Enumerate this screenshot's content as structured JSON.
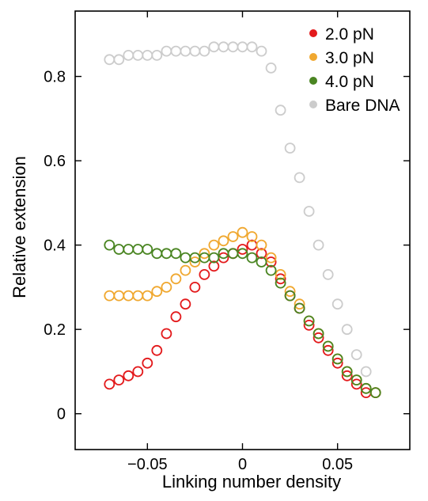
{
  "chart_data": {
    "type": "scatter",
    "xlabel": "Linking number density",
    "ylabel": "Relative extension",
    "xlim": [
      -0.088,
      0.088
    ],
    "ylim": [
      -0.085,
      0.955
    ],
    "x_ticks": [
      -0.05,
      0,
      0.05
    ],
    "x_tick_labels": [
      "−0.05",
      "0",
      "0.05"
    ],
    "y_ticks": [
      0,
      0.2,
      0.4,
      0.6,
      0.8
    ],
    "y_tick_labels": [
      "0",
      "0.2",
      "0.4",
      "0.6",
      "0.8"
    ],
    "grid": false,
    "legend_position": "top-right",
    "marker": "open-circle",
    "series": [
      {
        "name": "2.0 pN",
        "color": "#e31a1c",
        "x": [
          -0.07,
          -0.065,
          -0.06,
          -0.055,
          -0.05,
          -0.045,
          -0.04,
          -0.035,
          -0.03,
          -0.025,
          -0.02,
          -0.015,
          -0.01,
          -0.005,
          0.0,
          0.005,
          0.01,
          0.015,
          0.02,
          0.025,
          0.03,
          0.035,
          0.04,
          0.045,
          0.05,
          0.055,
          0.06,
          0.065,
          0.07
        ],
        "y": [
          0.07,
          0.08,
          0.09,
          0.1,
          0.12,
          0.15,
          0.19,
          0.23,
          0.26,
          0.3,
          0.33,
          0.35,
          0.37,
          0.38,
          0.39,
          0.4,
          0.38,
          0.36,
          0.32,
          0.28,
          0.25,
          0.21,
          0.18,
          0.15,
          0.12,
          0.09,
          0.07,
          0.05,
          0.05
        ]
      },
      {
        "name": "3.0 pN",
        "color": "#f0a830",
        "x": [
          -0.07,
          -0.065,
          -0.06,
          -0.055,
          -0.05,
          -0.045,
          -0.04,
          -0.035,
          -0.03,
          -0.025,
          -0.02,
          -0.015,
          -0.01,
          -0.005,
          0.0,
          0.005,
          0.01,
          0.015,
          0.02,
          0.025,
          0.03,
          0.035,
          0.04,
          0.045,
          0.05,
          0.055,
          0.06,
          0.065,
          0.07
        ],
        "y": [
          0.28,
          0.28,
          0.28,
          0.28,
          0.28,
          0.29,
          0.3,
          0.32,
          0.34,
          0.36,
          0.38,
          0.4,
          0.41,
          0.42,
          0.43,
          0.42,
          0.4,
          0.37,
          0.33,
          0.29,
          0.26,
          0.22,
          0.19,
          0.16,
          0.13,
          0.1,
          0.08,
          0.06,
          0.05
        ]
      },
      {
        "name": "4.0 pN",
        "color": "#4a8522",
        "x": [
          -0.07,
          -0.065,
          -0.06,
          -0.055,
          -0.05,
          -0.045,
          -0.04,
          -0.035,
          -0.03,
          -0.025,
          -0.02,
          -0.015,
          -0.01,
          -0.005,
          0.0,
          0.005,
          0.01,
          0.015,
          0.02,
          0.025,
          0.03,
          0.035,
          0.04,
          0.045,
          0.05,
          0.055,
          0.06,
          0.065,
          0.07
        ],
        "y": [
          0.4,
          0.39,
          0.39,
          0.39,
          0.39,
          0.38,
          0.38,
          0.38,
          0.37,
          0.37,
          0.37,
          0.37,
          0.38,
          0.38,
          0.38,
          0.37,
          0.36,
          0.34,
          0.31,
          0.28,
          0.25,
          0.22,
          0.19,
          0.16,
          0.13,
          0.1,
          0.08,
          0.06,
          0.05
        ]
      },
      {
        "name": "Bare DNA",
        "color": "#cccccc",
        "x": [
          -0.07,
          -0.065,
          -0.06,
          -0.055,
          -0.05,
          -0.045,
          -0.04,
          -0.035,
          -0.03,
          -0.025,
          -0.02,
          -0.015,
          -0.01,
          -0.005,
          0.0,
          0.005,
          0.01,
          0.015,
          0.02,
          0.025,
          0.03,
          0.035,
          0.04,
          0.045,
          0.05,
          0.055,
          0.06,
          0.065
        ],
        "y": [
          0.84,
          0.84,
          0.85,
          0.85,
          0.85,
          0.85,
          0.86,
          0.86,
          0.86,
          0.86,
          0.86,
          0.87,
          0.87,
          0.87,
          0.87,
          0.87,
          0.86,
          0.82,
          0.72,
          0.63,
          0.56,
          0.48,
          0.4,
          0.33,
          0.26,
          0.2,
          0.14,
          0.1
        ]
      }
    ]
  }
}
